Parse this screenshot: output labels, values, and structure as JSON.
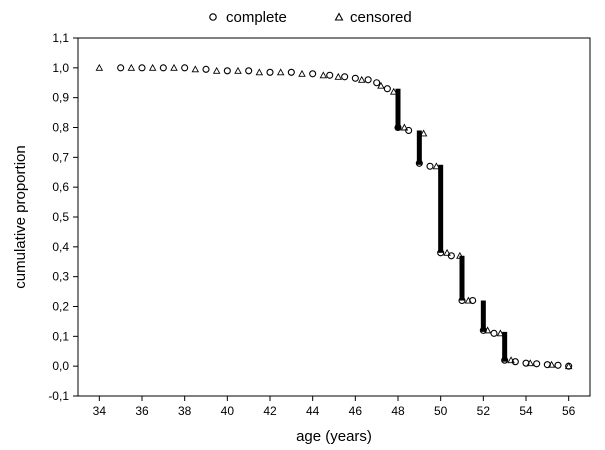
{
  "chart_data": {
    "type": "scatter",
    "xlabel": "age (years)",
    "ylabel": "cumulative  proportion",
    "xlim": [
      33,
      57
    ],
    "ylim": [
      -0.1,
      1.1
    ],
    "x_ticks": [
      34,
      36,
      38,
      40,
      42,
      44,
      46,
      48,
      50,
      52,
      54,
      56
    ],
    "x_tick_labels": [
      "34",
      "36",
      "38",
      "40",
      "42",
      "44",
      "46",
      "48",
      "50",
      "52",
      "54",
      "56"
    ],
    "y_ticks": [
      -0.1,
      0.0,
      0.1,
      0.2,
      0.3,
      0.4,
      0.5,
      0.6,
      0.7,
      0.8,
      0.9,
      1.0,
      1.1
    ],
    "y_tick_labels": [
      "-0,1",
      "0,0",
      "0,1",
      "0,2",
      "0,3",
      "0,4",
      "0,5",
      "0,6",
      "0,7",
      "0,8",
      "0,9",
      "1,0",
      "1,1"
    ],
    "legend": {
      "placement": "top-center",
      "entries": [
        {
          "label": "complete",
          "marker": "circle"
        },
        {
          "label": "censored",
          "marker": "triangle"
        }
      ]
    },
    "grid": false,
    "series": [
      {
        "name": "complete",
        "marker": "circle",
        "x": [
          35,
          36,
          37,
          38,
          39,
          40,
          41,
          42,
          43,
          44,
          44.8,
          45.5,
          46,
          46.6,
          47,
          47.5,
          48,
          48.5,
          49,
          49.5,
          50,
          50.5,
          51,
          51.5,
          52,
          52.5,
          53,
          53.5,
          54,
          54.5,
          55,
          55.5,
          56
        ],
        "y": [
          1.0,
          1.0,
          1.0,
          1.0,
          0.995,
          0.99,
          0.99,
          0.985,
          0.985,
          0.98,
          0.975,
          0.97,
          0.965,
          0.96,
          0.95,
          0.93,
          0.8,
          0.79,
          0.68,
          0.67,
          0.38,
          0.37,
          0.22,
          0.22,
          0.12,
          0.11,
          0.02,
          0.015,
          0.01,
          0.008,
          0.005,
          0.003,
          0.0
        ]
      },
      {
        "name": "censored",
        "marker": "triangle",
        "x": [
          34,
          35.5,
          36.5,
          37.5,
          38.5,
          39.5,
          40.5,
          41.5,
          42.5,
          43.5,
          44.5,
          45.2,
          46.3,
          47.2,
          47.8,
          48.3,
          49.2,
          49.8,
          50.3,
          50.9,
          51.3,
          52.2,
          52.8,
          53.3,
          54.2,
          55.2,
          56
        ],
        "y": [
          1.0,
          1.0,
          1.0,
          1.0,
          0.995,
          0.99,
          0.99,
          0.985,
          0.985,
          0.98,
          0.975,
          0.97,
          0.96,
          0.94,
          0.92,
          0.8,
          0.78,
          0.67,
          0.38,
          0.37,
          0.22,
          0.12,
          0.11,
          0.02,
          0.01,
          0.005,
          0.0
        ]
      }
    ],
    "steps": [
      {
        "x": 48,
        "from": 0.93,
        "to": 0.79
      },
      {
        "x": 49,
        "from": 0.79,
        "to": 0.675
      },
      {
        "x": 50,
        "from": 0.675,
        "to": 0.38
      },
      {
        "x": 51,
        "from": 0.37,
        "to": 0.22
      },
      {
        "x": 52,
        "from": 0.22,
        "to": 0.115
      },
      {
        "x": 53,
        "from": 0.115,
        "to": 0.015
      }
    ]
  }
}
